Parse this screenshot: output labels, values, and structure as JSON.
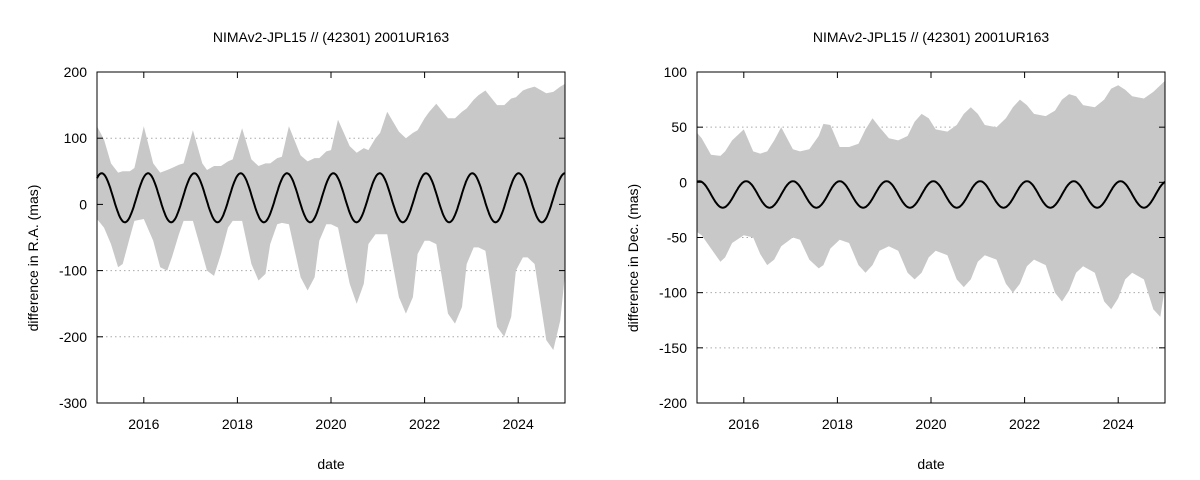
{
  "chart_data": [
    {
      "type": "area",
      "title": "NIMAv2-JPL15 // (42301) 2001UR163",
      "xlabel": "date",
      "ylabel": "difference in R.A. (mas)",
      "xlim": [
        2015.0,
        2025.0
      ],
      "ylim": [
        -300,
        200
      ],
      "xticks": [
        2016,
        2018,
        2020,
        2022,
        2024
      ],
      "yticks": [
        -300,
        -200,
        -100,
        0,
        100,
        200
      ],
      "grid": "horizontal-dotted",
      "colors": {
        "band": "#c8c8c8",
        "line": "#000000"
      },
      "series": [
        {
          "kind": "band",
          "x": [
            2015.0,
            2015.15,
            2015.3,
            2015.45,
            2015.55,
            2015.7,
            2015.8,
            2016.0,
            2016.2,
            2016.35,
            2016.5,
            2016.6,
            2016.75,
            2016.85,
            2017.05,
            2017.25,
            2017.35,
            2017.5,
            2017.65,
            2017.8,
            2017.9,
            2018.1,
            2018.3,
            2018.45,
            2018.6,
            2018.7,
            2018.85,
            2018.95,
            2019.1,
            2019.35,
            2019.5,
            2019.65,
            2019.75,
            2019.9,
            2020.0,
            2020.15,
            2020.4,
            2020.55,
            2020.7,
            2020.8,
            2020.95,
            2021.05,
            2021.2,
            2021.45,
            2021.6,
            2021.75,
            2021.85,
            2022.0,
            2022.1,
            2022.25,
            2022.5,
            2022.65,
            2022.8,
            2022.9,
            2023.05,
            2023.15,
            2023.3,
            2023.55,
            2023.7,
            2023.85,
            2023.95,
            2024.1,
            2024.2,
            2024.35,
            2024.6,
            2024.75,
            2024.9,
            2025.0
          ],
          "upper": [
            118,
            98,
            62,
            48,
            50,
            50,
            55,
            118,
            62,
            48,
            52,
            55,
            60,
            62,
            112,
            62,
            52,
            58,
            58,
            65,
            68,
            115,
            68,
            58,
            62,
            62,
            70,
            72,
            118,
            74,
            65,
            70,
            70,
            80,
            82,
            128,
            88,
            78,
            85,
            82,
            100,
            108,
            140,
            110,
            100,
            108,
            112,
            130,
            140,
            152,
            130,
            130,
            140,
            145,
            158,
            165,
            172,
            150,
            150,
            160,
            162,
            172,
            175,
            178,
            168,
            170,
            178,
            182
          ],
          "lower": [
            -22,
            -35,
            -60,
            -95,
            -90,
            -50,
            -25,
            -22,
            -55,
            -95,
            -100,
            -80,
            -45,
            -25,
            -25,
            -75,
            -100,
            -108,
            -75,
            -35,
            -25,
            -25,
            -90,
            -115,
            -105,
            -60,
            -30,
            -28,
            -30,
            -110,
            -130,
            -110,
            -55,
            -30,
            -30,
            -35,
            -120,
            -150,
            -120,
            -60,
            -45,
            -45,
            -45,
            -140,
            -165,
            -140,
            -75,
            -55,
            -55,
            -60,
            -165,
            -180,
            -155,
            -90,
            -65,
            -65,
            -70,
            -185,
            -200,
            -170,
            -100,
            -80,
            -80,
            -90,
            -205,
            -220,
            -175,
            -105
          ]
        },
        {
          "kind": "line",
          "x0": 2015.0,
          "x1": 2025.0,
          "mean": 10,
          "amplitude": 37,
          "period_years": 0.99,
          "phase_peak": 2015.1
        }
      ]
    },
    {
      "type": "area",
      "title": "NIMAv2-JPL15 // (42301) 2001UR163",
      "xlabel": "date",
      "ylabel": "difference in Dec. (mas)",
      "xlim": [
        2015.0,
        2025.0
      ],
      "ylim": [
        -200,
        100
      ],
      "xticks": [
        2016,
        2018,
        2020,
        2022,
        2024
      ],
      "yticks": [
        -200,
        -150,
        -100,
        -50,
        0,
        50,
        100
      ],
      "grid": "horizontal-dotted",
      "colors": {
        "band": "#c8c8c8",
        "line": "#000000"
      },
      "series": [
        {
          "kind": "band",
          "x": [
            2015.0,
            2015.1,
            2015.3,
            2015.5,
            2015.6,
            2015.75,
            2016.0,
            2016.2,
            2016.35,
            2016.5,
            2016.65,
            2016.8,
            2017.05,
            2017.2,
            2017.4,
            2017.6,
            2017.7,
            2017.85,
            2018.05,
            2018.25,
            2018.45,
            2018.6,
            2018.75,
            2018.9,
            2019.1,
            2019.3,
            2019.5,
            2019.65,
            2019.8,
            2019.95,
            2020.1,
            2020.35,
            2020.55,
            2020.7,
            2020.85,
            2021.0,
            2021.15,
            2021.4,
            2021.6,
            2021.75,
            2021.9,
            2022.05,
            2022.2,
            2022.45,
            2022.65,
            2022.8,
            2022.95,
            2023.1,
            2023.25,
            2023.5,
            2023.7,
            2023.85,
            2024.0,
            2024.15,
            2024.3,
            2024.55,
            2024.75,
            2024.9,
            2025.0
          ],
          "upper": [
            45,
            40,
            25,
            24,
            28,
            38,
            48,
            28,
            26,
            28,
            38,
            50,
            30,
            28,
            30,
            42,
            53,
            52,
            32,
            32,
            35,
            48,
            58,
            50,
            40,
            38,
            42,
            55,
            62,
            58,
            48,
            46,
            52,
            62,
            68,
            62,
            52,
            50,
            58,
            68,
            75,
            70,
            62,
            60,
            65,
            75,
            80,
            78,
            70,
            68,
            75,
            85,
            88,
            84,
            78,
            76,
            82,
            88,
            92
          ],
          "lower": [
            -45,
            -48,
            -60,
            -72,
            -68,
            -55,
            -48,
            -50,
            -65,
            -75,
            -70,
            -58,
            -50,
            -52,
            -70,
            -78,
            -75,
            -60,
            -52,
            -55,
            -75,
            -82,
            -75,
            -62,
            -58,
            -62,
            -82,
            -88,
            -82,
            -68,
            -62,
            -66,
            -88,
            -95,
            -88,
            -72,
            -66,
            -70,
            -92,
            -100,
            -92,
            -76,
            -70,
            -75,
            -100,
            -108,
            -98,
            -82,
            -76,
            -82,
            -108,
            -115,
            -105,
            -88,
            -82,
            -88,
            -115,
            -122,
            -95
          ]
        },
        {
          "kind": "line",
          "x0": 2015.0,
          "x1": 2025.0,
          "mean": -11,
          "amplitude": 12,
          "period_years": 1.0,
          "phase_peak": 2015.05
        }
      ]
    }
  ]
}
